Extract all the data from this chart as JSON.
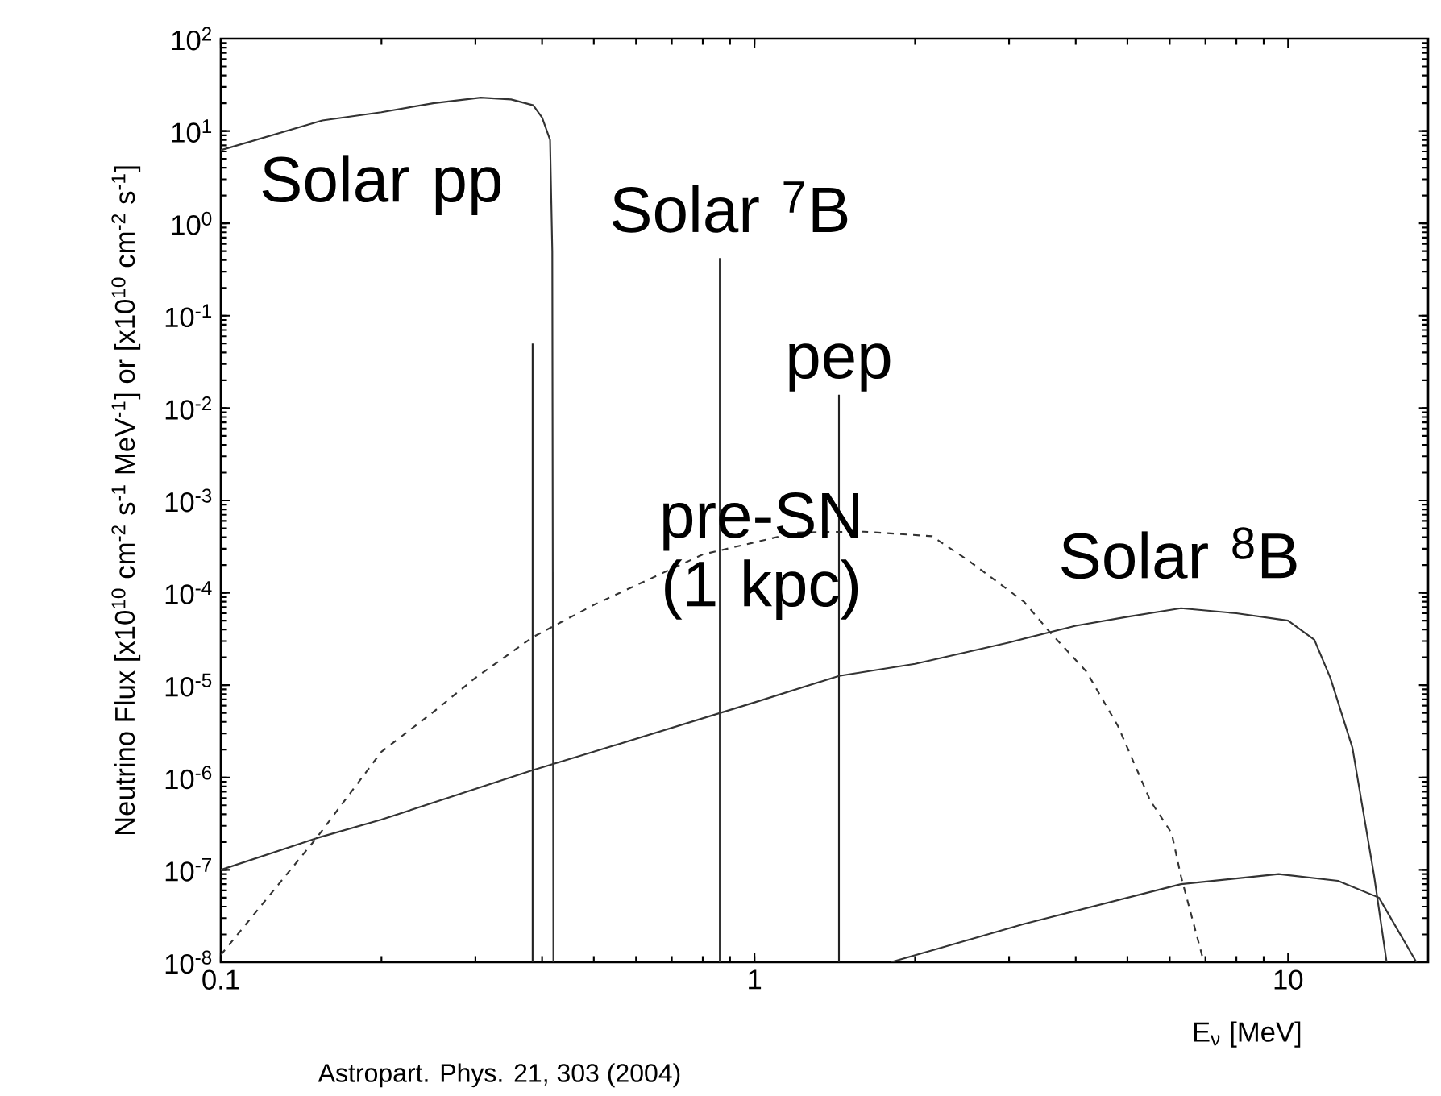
{
  "chart_data": {
    "type": "line",
    "xlabel": "E$_{ν}$ [MeV]",
    "ylabel": "Neutrino Flux [x10$^{10}$ cm$^{-2}$ s$^{-1}$ MeV$^{-1}$] or [x10$^{10}$ cm$^{-2}$ s$^{-1}$]",
    "annotations": [
      "Astropart. Phys. 21, 303 (2004)"
    ],
    "log": "xy",
    "xlim": [
      0.1,
      18.3
    ],
    "ylim": [
      1e-08,
      100
    ],
    "xticks": [
      0.1,
      1,
      10
    ],
    "yticks": [
      {
        "value": 1e-08,
        "label": "10$^{-8}$"
      },
      {
        "value": 1e-07,
        "label": "10$^{-7}$"
      },
      {
        "value": 1e-06,
        "label": "10$^{-6}$"
      },
      {
        "value": 1e-05,
        "label": "10$^{-5}$"
      },
      {
        "value": 0.0001,
        "label": "10$^{-4}$"
      },
      {
        "value": 0.001,
        "label": "10$^{-3}$"
      },
      {
        "value": 0.01,
        "label": "10$^{-2}$"
      },
      {
        "value": 0.1,
        "label": "10$^{-1}$"
      },
      {
        "value": 1,
        "label": "10$^{0}$"
      },
      {
        "value": 10,
        "label": "10$^{1}$"
      },
      {
        "value": 100,
        "label": "10$^{2}$"
      }
    ],
    "series": [
      {
        "name": "Solar pp",
        "color": "#333333",
        "x": [
          0.1,
          0.155,
          0.2,
          0.25,
          0.307,
          0.35,
          0.385,
          0.4,
          0.414,
          0.418,
          0.42
        ],
        "values": [
          6.2,
          13,
          16,
          20,
          23,
          22,
          19,
          14,
          8,
          0.5,
          1e-08
        ]
      },
      {
        "color": "#222222",
        "x": [
          0.384,
          0.384
        ],
        "values": [
          1e-08,
          0.05
        ]
      },
      {
        "name": "Solar $^{7}$B",
        "color": "#333333",
        "x": [
          0.861,
          0.861
        ],
        "values": [
          1e-08,
          0.42
        ]
      },
      {
        "name": "pep",
        "color": "#222222",
        "x": [
          1.44,
          1.44
        ],
        "values": [
          1e-08,
          0.014
        ]
      },
      {
        "name": "pre-SN (1 kpc)",
        "color": "#333333",
        "line_style": "dashed",
        "x": [
          0.1,
          0.151,
          0.2,
          0.25,
          0.3,
          0.384,
          0.5,
          0.8,
          1.2,
          1.6,
          2.15,
          2.5,
          3.2,
          3.57,
          4.19,
          4.8,
          5.52,
          6.05,
          6.3,
          6.87,
          6.95
        ],
        "values": [
          1.2e-08,
          2.2e-07,
          1.9e-06,
          5.1e-06,
          1.2e-05,
          3.3e-05,
          7.4e-05,
          0.00026,
          0.00045,
          0.00046,
          0.00041,
          0.00023,
          8e-05,
          3.8e-05,
          1.4e-05,
          3.6e-06,
          5.6e-07,
          2.5e-07,
          8.5e-08,
          1.3e-08,
          1e-08
        ]
      },
      {
        "name": "Solar $^{8}$B",
        "color": "#333333",
        "x": [
          0.1,
          0.151,
          0.2,
          0.384,
          0.5,
          1,
          1.44,
          2,
          3,
          4,
          5,
          6.3,
          8,
          10,
          11.2,
          12,
          13.2,
          14.5,
          15.3
        ],
        "values": [
          1e-07,
          2.2e-07,
          3.5e-07,
          1.2e-06,
          1.9e-06,
          6.5e-06,
          1.26e-05,
          1.7e-05,
          2.9e-05,
          4.4e-05,
          5.5e-05,
          6.8e-05,
          6e-05,
          5e-05,
          3.1e-05,
          1.2e-05,
          2.1e-06,
          8.5e-08,
          1e-08
        ]
      },
      {
        "color": "#333333",
        "x": [
          1.8,
          3.2,
          6.3,
          9.6,
          12.4,
          14.8,
          17.4
        ],
        "values": [
          1e-08,
          2.6e-08,
          7e-08,
          9e-08,
          7.6e-08,
          5e-08,
          1e-08
        ]
      }
    ]
  }
}
